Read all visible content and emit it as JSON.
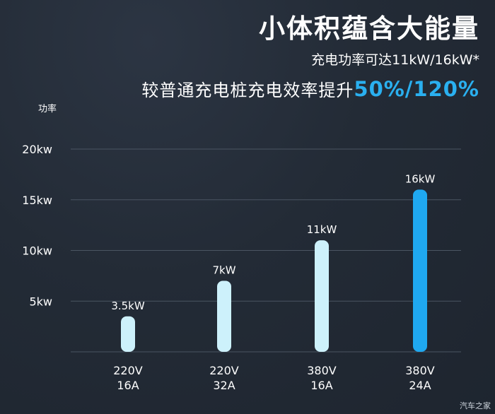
{
  "header": {
    "title": "小体积蕴含大能量",
    "subtitle": "充电功率可达11kW/16kW*",
    "compare_prefix": "较普通充电桩充电效率提升",
    "compare_highlight": "50%/120%"
  },
  "watermark": "汽车之家",
  "colors": {
    "bar_light": "#cdf1fb",
    "bar_accent": "#1fa8f0",
    "highlight": "#2ab0f0",
    "grid": "#4b5562"
  },
  "chart_data": {
    "type": "bar",
    "ylabel": "功率",
    "ylim": [
      0,
      20
    ],
    "yticks": [
      {
        "value": 5,
        "label": "5kw"
      },
      {
        "value": 10,
        "label": "10kw"
      },
      {
        "value": 15,
        "label": "15kw"
      },
      {
        "value": 20,
        "label": "20kw"
      }
    ],
    "grid": true,
    "categories": [
      {
        "line1": "220V",
        "line2": "16A"
      },
      {
        "line1": "220V",
        "line2": "32A"
      },
      {
        "line1": "380V",
        "line2": "16A"
      },
      {
        "line1": "380V",
        "line2": "24A"
      }
    ],
    "values": [
      3.5,
      7,
      11,
      16
    ],
    "data_labels": [
      "3.5kW",
      "7kW",
      "11kW",
      "16kW"
    ],
    "highlight_index": 3
  }
}
